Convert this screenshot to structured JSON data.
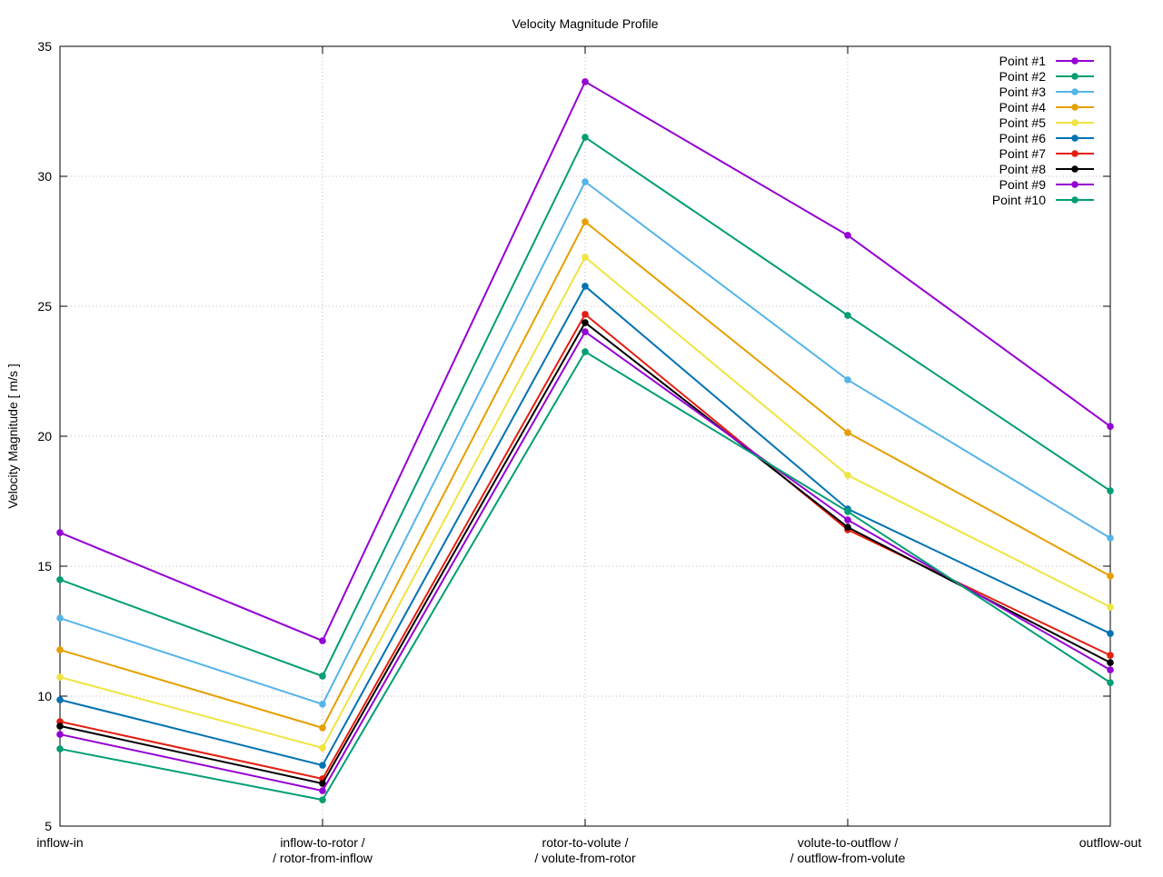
{
  "chart_data": {
    "type": "line",
    "title": "Velocity Magnitude Profile",
    "xlabel": "",
    "ylabel": "Velocity Magnitude [ m/s ]",
    "ylim": [
      5,
      35
    ],
    "yticks": [
      "5",
      "10",
      "15",
      "20",
      "25",
      "30",
      "35"
    ],
    "categories": [
      [
        "inflow-in"
      ],
      [
        "inflow-to-rotor /",
        "/ rotor-from-inflow"
      ],
      [
        "rotor-to-volute /",
        "/ volute-from-rotor"
      ],
      [
        "volute-to-outflow /",
        "/ outflow-from-volute"
      ],
      [
        "outflow-out"
      ]
    ],
    "grid": true,
    "legend_position": "top-right",
    "series": [
      {
        "name": "Point #1",
        "color": "#9400d3",
        "values": [
          16.29,
          12.13,
          33.64,
          27.73,
          20.38
        ]
      },
      {
        "name": "Point #2",
        "color": "#009e73",
        "values": [
          14.48,
          10.77,
          31.5,
          24.65,
          17.9
        ]
      },
      {
        "name": "Point #3",
        "color": "#56b4e9",
        "values": [
          13.0,
          9.69,
          29.79,
          22.17,
          16.08
        ]
      },
      {
        "name": "Point #4",
        "color": "#e69f00",
        "values": [
          11.78,
          8.78,
          28.25,
          20.14,
          14.62
        ]
      },
      {
        "name": "Point #5",
        "color": "#f0e442",
        "values": [
          10.73,
          8.01,
          26.89,
          18.5,
          13.43
        ]
      },
      {
        "name": "Point #6",
        "color": "#0072b2",
        "values": [
          9.86,
          7.34,
          25.77,
          17.2,
          12.41
        ]
      },
      {
        "name": "Point #7",
        "color": "#e51e10",
        "values": [
          9.02,
          6.82,
          24.69,
          16.4,
          11.57
        ]
      },
      {
        "name": "Point #8",
        "color": "#000000",
        "values": [
          8.85,
          6.64,
          24.37,
          16.5,
          11.29
        ]
      },
      {
        "name": "Point #9",
        "color": "#9400d3",
        "values": [
          8.53,
          6.36,
          24.02,
          16.78,
          11.01
        ]
      },
      {
        "name": "Point #10",
        "color": "#009e73",
        "values": [
          7.97,
          6.01,
          23.25,
          17.1,
          10.52
        ]
      }
    ]
  }
}
